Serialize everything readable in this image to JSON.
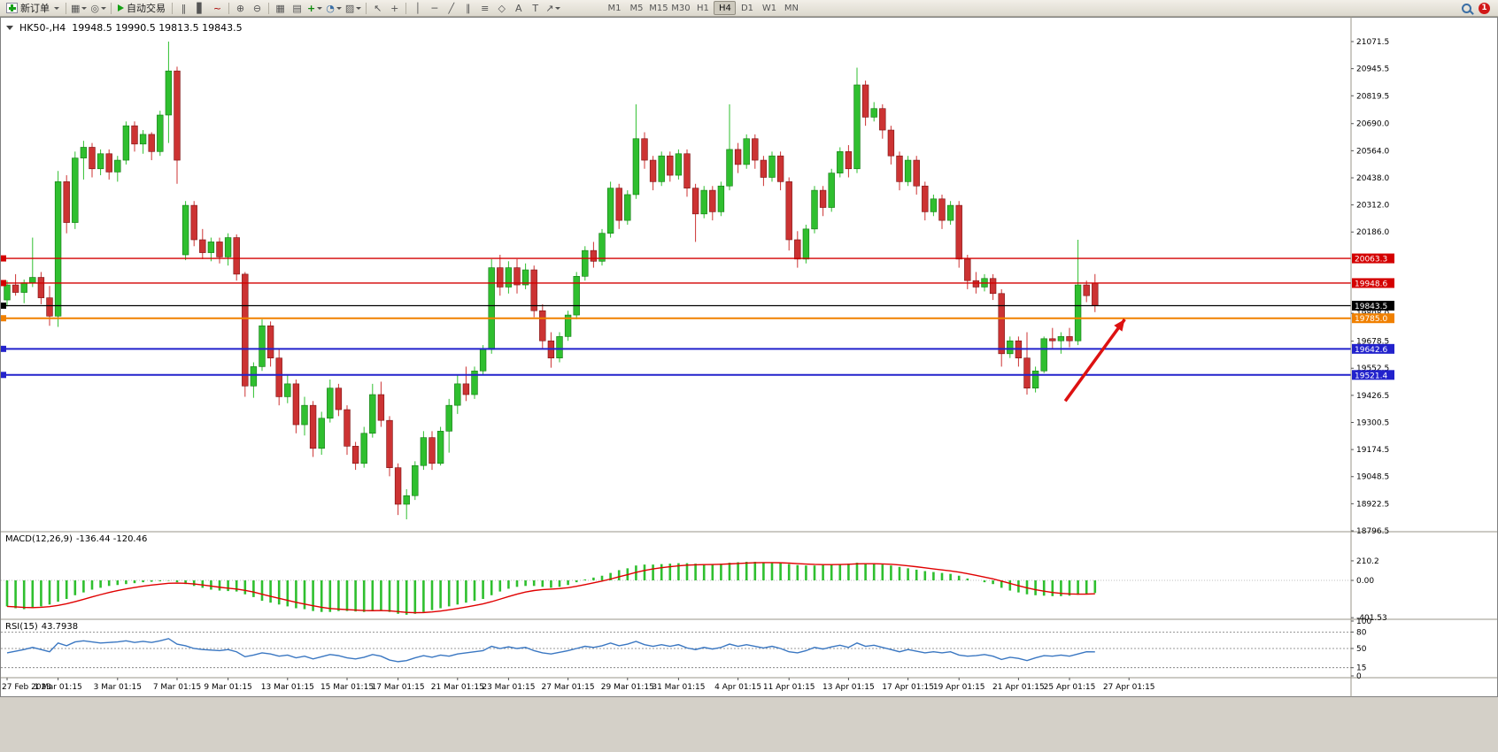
{
  "toolbar": {
    "new_order_label": "新订单",
    "autotrade_label": "自动交易",
    "notification_count": "1",
    "timeframes": [
      "M1",
      "M5",
      "M15",
      "M30",
      "H1",
      "H4",
      "D1",
      "W1",
      "MN"
    ],
    "active_timeframe": "H4",
    "groups": {
      "windows": [
        {
          "name": "new-chart-icon",
          "glyph": "▦",
          "dropdown": true
        },
        {
          "name": "profiles-icon",
          "glyph": "◎",
          "dropdown": true
        }
      ],
      "chart_types": [
        {
          "name": "bar-chart-icon",
          "glyph": "‖"
        },
        {
          "name": "candlestick-chart-icon",
          "glyph": "▋"
        },
        {
          "name": "line-chart-icon",
          "glyph": "~"
        }
      ],
      "zoom": [
        {
          "name": "zoom-in-icon",
          "glyph": "⊕"
        },
        {
          "name": "zoom-out-icon",
          "glyph": "⊖"
        }
      ],
      "tools": [
        {
          "name": "tile-windows-icon",
          "glyph": "▦"
        },
        {
          "name": "arrange-windows-icon",
          "glyph": "▤"
        },
        {
          "name": "indicators-icon",
          "glyph": "+",
          "dropdown": true
        },
        {
          "name": "period-icon",
          "glyph": "◔",
          "dropdown": true
        },
        {
          "name": "templates-icon",
          "glyph": "▨",
          "dropdown": true
        }
      ],
      "cursor": [
        {
          "name": "cursor-icon",
          "glyph": "↖"
        },
        {
          "name": "crosshair-icon",
          "glyph": "+"
        }
      ],
      "draw": [
        {
          "name": "vertical-line-icon",
          "glyph": "│"
        },
        {
          "name": "horizontal-line-icon",
          "glyph": "─"
        },
        {
          "name": "trendline-icon",
          "glyph": "╱"
        },
        {
          "name": "equidistant-channel-icon",
          "glyph": "∥"
        },
        {
          "name": "fibonacci-icon",
          "glyph": "≡"
        },
        {
          "name": "shapes-icon",
          "glyph": "◇"
        },
        {
          "name": "text-icon",
          "glyph": "A"
        },
        {
          "name": "label-icon",
          "glyph": "T"
        },
        {
          "name": "arrows-icon",
          "glyph": "↗",
          "dropdown": true
        }
      ]
    }
  },
  "chart": {
    "symbol_period": "HK50-,H4",
    "ohlc": "19948.5 19990.5 19813.5 19843.5"
  },
  "chart_data": {
    "type": "candlestick",
    "symbol": "HK50-",
    "timeframe": "H4",
    "colors": {
      "up": "#2FBF2F",
      "up_dark": "#117711",
      "down": "#CC3333",
      "down_dark": "#7A1010",
      "macd_hist": "#2FBF2F",
      "macd_signal": "#E00000",
      "rsi_line": "#3A77C2",
      "arrow": "#DD1111",
      "background": "#FFFFFF",
      "window_frame": "#808080"
    },
    "price_axis": {
      "min": 18796.5,
      "max": 21071.5,
      "labels": [
        21071.5,
        20945.5,
        20819.5,
        20690.0,
        20564.0,
        20438.0,
        20312.0,
        20186.0,
        19808.0,
        19678.5,
        19552.5,
        19426.5,
        19300.5,
        19174.5,
        19048.5,
        18922.5,
        18796.5
      ]
    },
    "hlines": [
      {
        "price": 20063.3,
        "color": "#D40000",
        "width": 1.4,
        "label": "20063.3"
      },
      {
        "price": 19948.6,
        "color": "#D40000",
        "width": 1.4,
        "label": "19948.6"
      },
      {
        "price": 19843.5,
        "color": "#000000",
        "width": 1.2,
        "label": "19843.5"
      },
      {
        "price": 19785.0,
        "color": "#F08000",
        "width": 2,
        "label": "19785.0"
      },
      {
        "price": 19642.6,
        "color": "#2222CC",
        "width": 2,
        "label": "19642.6"
      },
      {
        "price": 19521.4,
        "color": "#2222CC",
        "width": 2,
        "label": "19521.4"
      }
    ],
    "candles": [
      [
        19870,
        19960,
        19840,
        19940
      ],
      [
        19940,
        19990,
        19890,
        19905
      ],
      [
        19905,
        19965,
        19855,
        19950
      ],
      [
        19950,
        20160,
        19930,
        19975
      ],
      [
        19975,
        20000,
        19850,
        19880
      ],
      [
        19880,
        19935,
        19750,
        19795
      ],
      [
        19795,
        20470,
        19745,
        20420
      ],
      [
        20420,
        20450,
        20180,
        20230
      ],
      [
        20230,
        20560,
        20200,
        20530
      ],
      [
        20530,
        20610,
        20430,
        20580
      ],
      [
        20580,
        20600,
        20440,
        20480
      ],
      [
        20480,
        20570,
        20450,
        20550
      ],
      [
        20550,
        20570,
        20430,
        20465
      ],
      [
        20465,
        20540,
        20420,
        20520
      ],
      [
        20520,
        20700,
        20500,
        20680
      ],
      [
        20680,
        20700,
        20560,
        20595
      ],
      [
        20595,
        20660,
        20550,
        20640
      ],
      [
        20640,
        20650,
        20520,
        20560
      ],
      [
        20560,
        20750,
        20540,
        20730
      ],
      [
        20730,
        21071.5,
        20600,
        20935
      ],
      [
        20935,
        20955,
        20410,
        20520
      ],
      [
        20080,
        20330,
        20055,
        20310
      ],
      [
        20310,
        20330,
        20120,
        20150
      ],
      [
        20150,
        20200,
        20060,
        20090
      ],
      [
        20090,
        20160,
        20050,
        20140
      ],
      [
        20140,
        20160,
        20040,
        20070
      ],
      [
        20070,
        20180,
        20030,
        20160
      ],
      [
        20160,
        20175,
        19960,
        19990
      ],
      [
        19990,
        20000,
        19420,
        19470
      ],
      [
        19470,
        19580,
        19415,
        19560
      ],
      [
        19560,
        19780,
        19540,
        19750
      ],
      [
        19750,
        19770,
        19560,
        19600
      ],
      [
        19600,
        19640,
        19380,
        19420
      ],
      [
        19420,
        19520,
        19390,
        19480
      ],
      [
        19480,
        19500,
        19250,
        19290
      ],
      [
        19290,
        19420,
        19240,
        19380
      ],
      [
        19380,
        19400,
        19140,
        19180
      ],
      [
        19180,
        19350,
        19150,
        19320
      ],
      [
        19320,
        19500,
        19300,
        19460
      ],
      [
        19460,
        19480,
        19330,
        19360
      ],
      [
        19360,
        19380,
        19150,
        19190
      ],
      [
        19190,
        19210,
        19080,
        19110
      ],
      [
        19110,
        19280,
        19090,
        19250
      ],
      [
        19250,
        19480,
        19230,
        19430
      ],
      [
        19430,
        19490,
        19280,
        19310
      ],
      [
        19310,
        19330,
        19050,
        19090
      ],
      [
        19090,
        19110,
        18870,
        18920
      ],
      [
        18920,
        18990,
        18850,
        18960
      ],
      [
        18960,
        19120,
        18940,
        19100
      ],
      [
        19100,
        19260,
        19080,
        19230
      ],
      [
        19230,
        19260,
        19080,
        19110
      ],
      [
        19110,
        19280,
        19100,
        19260
      ],
      [
        19260,
        19410,
        19160,
        19380
      ],
      [
        19380,
        19520,
        19340,
        19480
      ],
      [
        19480,
        19560,
        19400,
        19430
      ],
      [
        19430,
        19560,
        19410,
        19540
      ],
      [
        19540,
        19660,
        19520,
        19640
      ],
      [
        19640,
        20060,
        19620,
        20020
      ],
      [
        20020,
        20080,
        19890,
        19930
      ],
      [
        19930,
        20050,
        19900,
        20020
      ],
      [
        20020,
        20060,
        19900,
        19940
      ],
      [
        19940,
        20040,
        19920,
        20010
      ],
      [
        20010,
        20030,
        19790,
        19820
      ],
      [
        19820,
        19850,
        19640,
        19680
      ],
      [
        19680,
        19720,
        19555,
        19600
      ],
      [
        19600,
        19720,
        19580,
        19700
      ],
      [
        19700,
        19820,
        19680,
        19800
      ],
      [
        19800,
        20000,
        19780,
        19980
      ],
      [
        19980,
        20120,
        19960,
        20100
      ],
      [
        20100,
        20140,
        20020,
        20050
      ],
      [
        20050,
        20200,
        20030,
        20180
      ],
      [
        20180,
        20420,
        20160,
        20390
      ],
      [
        20390,
        20410,
        20200,
        20240
      ],
      [
        20240,
        20380,
        20220,
        20360
      ],
      [
        20360,
        20780,
        20340,
        20620
      ],
      [
        20620,
        20650,
        20480,
        20520
      ],
      [
        20520,
        20540,
        20380,
        20420
      ],
      [
        20420,
        20560,
        20400,
        20540
      ],
      [
        20540,
        20560,
        20420,
        20450
      ],
      [
        20450,
        20570,
        20430,
        20550
      ],
      [
        20550,
        20570,
        20350,
        20390
      ],
      [
        20390,
        20410,
        20140,
        20270
      ],
      [
        20270,
        20400,
        20250,
        20380
      ],
      [
        20380,
        20400,
        20240,
        20280
      ],
      [
        20280,
        20420,
        20260,
        20400
      ],
      [
        20400,
        20780,
        20380,
        20570
      ],
      [
        20570,
        20600,
        20460,
        20500
      ],
      [
        20500,
        20640,
        20480,
        20620
      ],
      [
        20620,
        20640,
        20480,
        20520
      ],
      [
        20520,
        20540,
        20400,
        20440
      ],
      [
        20440,
        20560,
        20420,
        20540
      ],
      [
        20540,
        20560,
        20380,
        20420
      ],
      [
        20420,
        20440,
        20100,
        20150
      ],
      [
        20150,
        20190,
        20020,
        20060
      ],
      [
        20060,
        20220,
        20040,
        20200
      ],
      [
        20200,
        20400,
        20180,
        20380
      ],
      [
        20380,
        20400,
        20260,
        20300
      ],
      [
        20300,
        20480,
        20280,
        20460
      ],
      [
        20460,
        20580,
        20440,
        20560
      ],
      [
        20560,
        20590,
        20440,
        20480
      ],
      [
        20480,
        20950,
        20460,
        20870
      ],
      [
        20870,
        20890,
        20680,
        20720
      ],
      [
        20720,
        20790,
        20700,
        20760
      ],
      [
        20760,
        20780,
        20620,
        20660
      ],
      [
        20660,
        20680,
        20500,
        20540
      ],
      [
        20540,
        20560,
        20380,
        20420
      ],
      [
        20420,
        20540,
        20400,
        20520
      ],
      [
        20520,
        20540,
        20360,
        20400
      ],
      [
        20400,
        20420,
        20240,
        20280
      ],
      [
        20280,
        20360,
        20260,
        20340
      ],
      [
        20340,
        20360,
        20200,
        20240
      ],
      [
        20240,
        20330,
        20220,
        20310
      ],
      [
        20310,
        20330,
        20020,
        20060
      ],
      [
        20060,
        20080,
        19920,
        19960
      ],
      [
        19960,
        20000,
        19900,
        19930
      ],
      [
        19930,
        19990,
        19910,
        19970
      ],
      [
        19970,
        19990,
        19870,
        19900
      ],
      [
        19900,
        19920,
        19560,
        19620
      ],
      [
        19620,
        19700,
        19600,
        19680
      ],
      [
        19680,
        19700,
        19560,
        19600
      ],
      [
        19600,
        19720,
        19430,
        19460
      ],
      [
        19460,
        19560,
        19440,
        19540
      ],
      [
        19540,
        19700,
        19530,
        19690
      ],
      [
        19690,
        19740,
        19640,
        19680
      ],
      [
        19680,
        19720,
        19620,
        19700
      ],
      [
        19700,
        19740,
        19650,
        19680
      ],
      [
        19680,
        20150,
        19660,
        19940
      ],
      [
        19940,
        19960,
        19860,
        19890
      ],
      [
        19948.5,
        19990.5,
        19813.5,
        19843.5
      ]
    ],
    "macd": {
      "label": "MACD(12,26,9)",
      "value_text": "-136.44 -120.46",
      "scale": [
        210.2,
        0.0,
        -401.53
      ],
      "scale_text": [
        "210.2",
        "0.00",
        "-401.53"
      ],
      "hist": [
        -280,
        -300,
        -310,
        -300,
        -280,
        -260,
        -230,
        -200,
        -160,
        -130,
        -100,
        -80,
        -60,
        -50,
        -40,
        -30,
        -20,
        -15,
        -10,
        -5,
        -20,
        -40,
        -60,
        -80,
        -100,
        -110,
        -115,
        -120,
        -150,
        -180,
        -220,
        -240,
        -260,
        -280,
        -300,
        -310,
        -330,
        -340,
        -340,
        -330,
        -330,
        -335,
        -340,
        -330,
        -320,
        -340,
        -360,
        -370,
        -360,
        -340,
        -320,
        -300,
        -280,
        -260,
        -240,
        -220,
        -200,
        -160,
        -120,
        -90,
        -70,
        -60,
        -60,
        -70,
        -80,
        -70,
        -50,
        -20,
        10,
        30,
        50,
        80,
        110,
        130,
        160,
        170,
        170,
        175,
        180,
        185,
        185,
        180,
        175,
        175,
        180,
        190,
        195,
        200,
        200,
        195,
        190,
        185,
        175,
        165,
        160,
        160,
        165,
        170,
        175,
        180,
        190,
        185,
        180,
        170,
        160,
        145,
        130,
        115,
        100,
        90,
        80,
        70,
        50,
        20,
        0,
        -20,
        -40,
        -80,
        -110,
        -130,
        -150,
        -160,
        -165,
        -170,
        -170,
        -165,
        -155,
        -145,
        -136
      ]
    },
    "rsi": {
      "label": "RSI(15)",
      "value_text": "43.7938",
      "levels": [
        80,
        50,
        15
      ],
      "scale": [
        100,
        80,
        50,
        15,
        0
      ],
      "values": [
        42,
        45,
        48,
        52,
        48,
        44,
        60,
        55,
        62,
        64,
        62,
        60,
        61,
        62,
        64,
        61,
        63,
        61,
        64,
        68,
        58,
        55,
        50,
        48,
        47,
        46,
        48,
        44,
        35,
        38,
        42,
        40,
        36,
        38,
        33,
        36,
        31,
        35,
        39,
        37,
        33,
        31,
        34,
        39,
        36,
        29,
        26,
        28,
        33,
        37,
        34,
        38,
        36,
        40,
        42,
        44,
        46,
        54,
        50,
        53,
        50,
        52,
        46,
        42,
        40,
        43,
        46,
        50,
        54,
        52,
        55,
        60,
        55,
        58,
        63,
        57,
        54,
        57,
        54,
        57,
        51,
        48,
        52,
        49,
        52,
        58,
        54,
        57,
        54,
        51,
        54,
        50,
        44,
        42,
        46,
        52,
        49,
        53,
        56,
        52,
        60,
        54,
        56,
        52,
        48,
        44,
        48,
        45,
        42,
        44,
        42,
        44,
        38,
        36,
        37,
        39,
        36,
        30,
        34,
        32,
        28,
        33,
        37,
        36,
        38,
        36,
        40,
        44,
        43.8
      ]
    },
    "time_labels": [
      {
        "idx": 0,
        "text": "27 Feb 2023"
      },
      {
        "idx": 6,
        "text": "1 Mar 01:15"
      },
      {
        "idx": 13,
        "text": "3 Mar 01:15"
      },
      {
        "idx": 20,
        "text": "7 Mar 01:15"
      },
      {
        "idx": 26,
        "text": "9 Mar 01:15"
      },
      {
        "idx": 33,
        "text": "13 Mar 01:15"
      },
      {
        "idx": 40,
        "text": "15 Mar 01:15"
      },
      {
        "idx": 46,
        "text": "17 Mar 01:15"
      },
      {
        "idx": 53,
        "text": "21 Mar 01:15"
      },
      {
        "idx": 59,
        "text": "23 Mar 01:15"
      },
      {
        "idx": 66,
        "text": "27 Mar 01:15"
      },
      {
        "idx": 73,
        "text": "29 Mar 01:15"
      },
      {
        "idx": 79,
        "text": "31 Mar 01:15"
      },
      {
        "idx": 86,
        "text": "4 Apr 01:15"
      },
      {
        "idx": 92,
        "text": "11 Apr 01:15"
      },
      {
        "idx": 99,
        "text": "13 Apr 01:15"
      },
      {
        "idx": 106,
        "text": "17 Apr 01:15"
      },
      {
        "idx": 112,
        "text": "19 Apr 01:15"
      },
      {
        "idx": 119,
        "text": "21 Apr 01:15"
      },
      {
        "idx": 125,
        "text": "25 Apr 01:15"
      },
      {
        "idx": 132,
        "text": "27 Apr 01:15"
      }
    ],
    "arrow": {
      "from": {
        "bar": 124.5,
        "price": 19400
      },
      "to": {
        "bar": 131.5,
        "price": 19780
      },
      "color": "#DD1111"
    }
  }
}
